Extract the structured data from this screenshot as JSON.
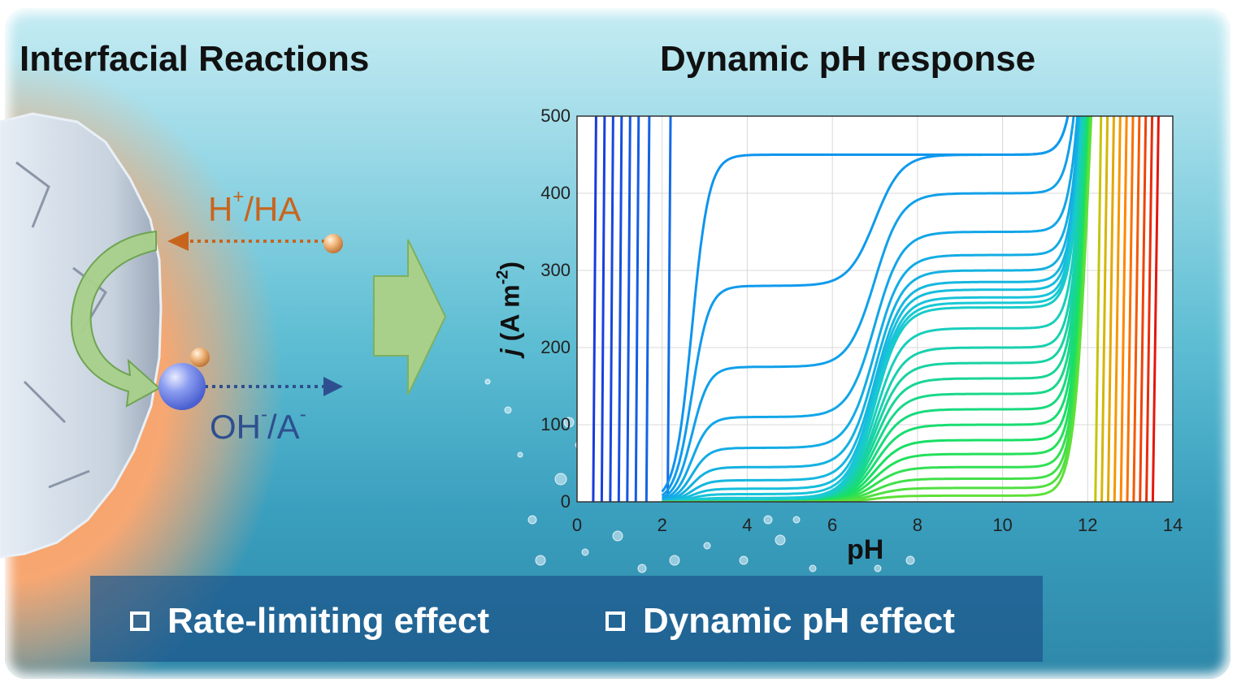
{
  "titles": {
    "left": "Interfacial Reactions",
    "right": "Dynamic pH response"
  },
  "species": {
    "proton_label": "H",
    "proton_charge": "+",
    "proton_suffix": "/HA",
    "hydroxide_label": "OH",
    "hydroxide_charge": "-",
    "hydroxide_mid": "/A",
    "anion_charge": "-"
  },
  "colors": {
    "proton_arrow": "#c8651d",
    "hydroxide_arrow": "#2e4f8f",
    "big_arrow_fill": "#a8d08a",
    "interface_glow": "#f59a5c",
    "banner": "#1c568c"
  },
  "icons": {
    "curved_arrow": "curved-green-arrow-icon",
    "big_arrow": "right-block-arrow-icon",
    "sphere": "blue-sphere-icon"
  },
  "chart_data": {
    "type": "line",
    "title": "",
    "xlabel": "pH",
    "ylabel_main": "j",
    "ylabel_unit": "(A m",
    "ylabel_exp": "-2",
    "ylabel_close": ")",
    "xlim": [
      0,
      14
    ],
    "ylim": [
      0,
      500
    ],
    "xticks": [
      "0",
      "2",
      "4",
      "6",
      "8",
      "10",
      "12",
      "14"
    ],
    "yticks": [
      "0",
      "100",
      "200",
      "300",
      "400",
      "500"
    ],
    "grid": true,
    "legend": "none",
    "color_scale": [
      "#1a2fd8",
      "#0e8ff0",
      "#18c8d8",
      "#18e060",
      "#a8e010",
      "#ff8c00",
      "#e01010"
    ],
    "steep_left_lines_pH": [
      0.4,
      0.6,
      0.8,
      1.0,
      1.2,
      1.4,
      1.65,
      2.15
    ],
    "plateau_curves": [
      {
        "j1": 450,
        "j2": 450
      },
      {
        "j1": 280,
        "j2": 450
      },
      {
        "j1": 175,
        "j2": 400
      },
      {
        "j1": 110,
        "j2": 350
      },
      {
        "j1": 70,
        "j2": 320
      },
      {
        "j1": 45,
        "j2": 300
      },
      {
        "j1": 28,
        "j2": 285
      },
      {
        "j1": 17,
        "j2": 275
      },
      {
        "j1": 10,
        "j2": 265
      },
      {
        "j1": 5,
        "j2": 258
      },
      {
        "j1": 2,
        "j2": 252
      },
      {
        "j1": 1,
        "j2": 225
      },
      {
        "j1": 0,
        "j2": 200
      },
      {
        "j1": 0,
        "j2": 180
      },
      {
        "j1": 0,
        "j2": 160
      },
      {
        "j1": 0,
        "j2": 140
      },
      {
        "j1": 0,
        "j2": 120
      },
      {
        "j1": 0,
        "j2": 100
      },
      {
        "j1": 0,
        "j2": 80
      },
      {
        "j1": 0,
        "j2": 62
      },
      {
        "j1": 0,
        "j2": 45
      },
      {
        "j1": 0,
        "j2": 30
      },
      {
        "j1": 0,
        "j2": 18
      },
      {
        "j1": 0,
        "j2": 8
      }
    ],
    "steep_right_lines_pH": [
      12.3,
      12.45,
      12.6,
      12.75,
      12.9,
      13.05,
      13.2,
      13.35,
      13.5,
      13.65
    ]
  },
  "banner": {
    "effect1": "Rate-limiting effect",
    "effect2": "Dynamic pH effect"
  }
}
